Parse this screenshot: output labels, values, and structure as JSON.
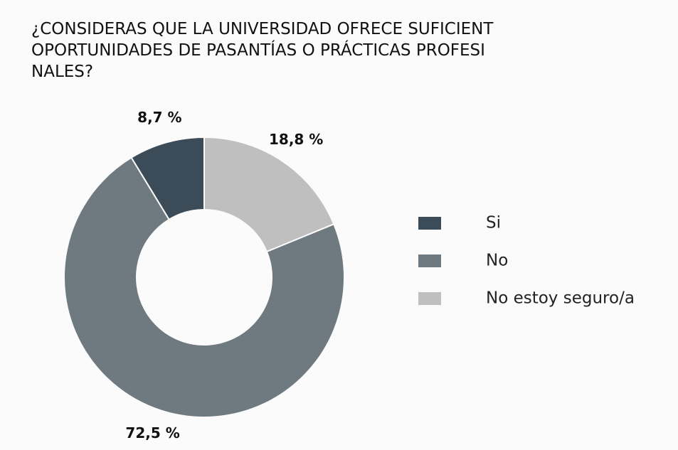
{
  "chart_data": {
    "type": "donut",
    "title_lines": [
      "¿CONSIDERAS QUE LA UNIVERSIDAD OFRECE SUFICIENT",
      "OPORTUNIDADES DE PASANTÍAS O PRÁCTICAS PROFESI",
      "NALES?"
    ],
    "series": [
      {
        "name": "Si",
        "color": "#3c4b58",
        "values": [
          8.7
        ],
        "value_labels": [
          "8,7 %"
        ]
      },
      {
        "name": "No",
        "color": "#6e7980",
        "values": [
          72.5
        ],
        "value_labels": [
          "72,5 %"
        ]
      },
      {
        "name": "No estoy seguro/a",
        "color": "#bfbfbf",
        "values": [
          18.8
        ],
        "value_labels": [
          "18,8 %"
        ]
      }
    ],
    "legend": "right"
  }
}
